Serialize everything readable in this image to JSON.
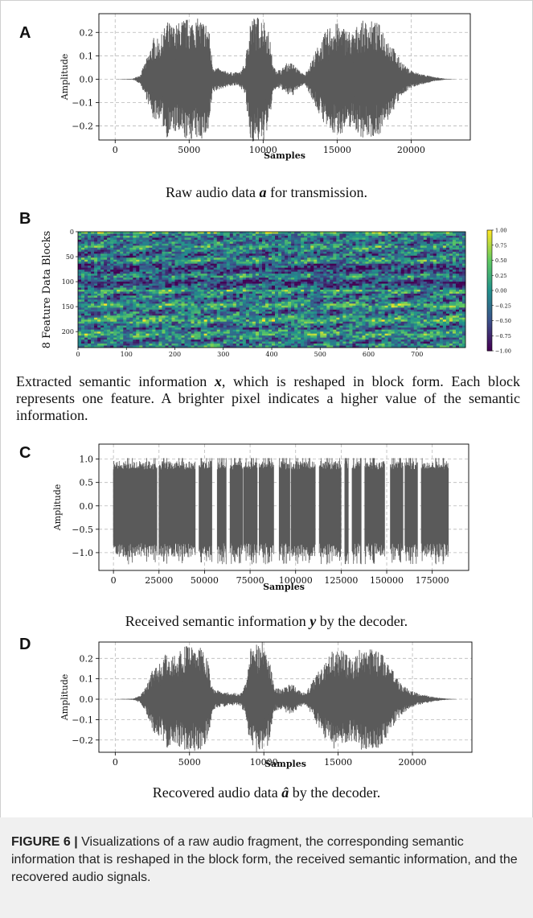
{
  "panels": {
    "a": {
      "letter": "A",
      "caption_pre": "Raw audio data ",
      "caption_sym": "a",
      "caption_post": " for transmission."
    },
    "b": {
      "letter": "B",
      "caption_pre": "Extracted semantic information ",
      "caption_sym": "x",
      "caption_post": ", which is reshaped in block form. Each block represents one feature. A brighter pixel indicates a higher value of the semantic information."
    },
    "c": {
      "letter": "C",
      "caption_pre": "Received semantic information ",
      "caption_sym": "y",
      "caption_post": " by the decoder."
    },
    "d": {
      "letter": "D",
      "caption_pre": "Recovered audio data ",
      "caption_sym": "â",
      "caption_post": " by the decoder."
    }
  },
  "figure_caption": {
    "label": "FIGURE 6 |",
    "text": " Visualizations of a raw audio fragment, the corresponding semantic information that is reshaped in the block form, the received semantic information, and the recovered audio signals."
  },
  "colors": {
    "waveform": "#5a5a5a",
    "grid": "#b8b8b8",
    "axis": "#000000"
  },
  "chart_data": [
    {
      "id": "A",
      "type": "line",
      "title": "",
      "xlabel": "Samples",
      "ylabel": "Amplitude",
      "xlim": [
        -1100,
        24000
      ],
      "ylim": [
        -0.26,
        0.28
      ],
      "xticks": [
        0,
        5000,
        10000,
        15000,
        20000
      ],
      "yticks": [
        -0.2,
        -0.1,
        0.0,
        0.1,
        0.2
      ],
      "grid": true,
      "series": [
        {
          "envelope": [
            [
              0,
              0.0
            ],
            [
              1200,
              0.002
            ],
            [
              1700,
              0.02
            ],
            [
              2200,
              0.1
            ],
            [
              2600,
              0.18
            ],
            [
              3000,
              0.17
            ],
            [
              3500,
              0.25
            ],
            [
              4000,
              0.23
            ],
            [
              4600,
              0.26
            ],
            [
              5300,
              0.26
            ],
            [
              5800,
              0.26
            ],
            [
              6300,
              0.24
            ],
            [
              6600,
              0.06
            ],
            [
              7200,
              0.04
            ],
            [
              7800,
              0.03
            ],
            [
              8400,
              0.03
            ],
            [
              8800,
              0.07
            ],
            [
              9100,
              0.27
            ],
            [
              9500,
              0.27
            ],
            [
              10000,
              0.27
            ],
            [
              10400,
              0.2
            ],
            [
              10700,
              0.05
            ],
            [
              11200,
              0.04
            ],
            [
              11600,
              0.07
            ],
            [
              12000,
              0.07
            ],
            [
              12400,
              0.04
            ],
            [
              12800,
              0.02
            ],
            [
              13200,
              0.07
            ],
            [
              13600,
              0.13
            ],
            [
              14200,
              0.2
            ],
            [
              14600,
              0.24
            ],
            [
              15100,
              0.24
            ],
            [
              15600,
              0.22
            ],
            [
              16100,
              0.2
            ],
            [
              16500,
              0.25
            ],
            [
              17000,
              0.25
            ],
            [
              17500,
              0.25
            ],
            [
              18000,
              0.23
            ],
            [
              18600,
              0.16
            ],
            [
              19200,
              0.09
            ],
            [
              19700,
              0.05
            ],
            [
              20300,
              0.03
            ],
            [
              20900,
              0.02
            ],
            [
              21500,
              0.01
            ],
            [
              22300,
              0.002
            ],
            [
              23000,
              0.0
            ]
          ]
        }
      ]
    },
    {
      "id": "B",
      "type": "heatmap",
      "title": "",
      "xlabel": "",
      "ylabel": "8 Feature Data Blocks",
      "xlim": [
        0,
        800
      ],
      "ylim": [
        0,
        232
      ],
      "xticks": [
        0,
        100,
        200,
        300,
        400,
        500,
        600,
        700
      ],
      "yticks": [
        0,
        50,
        100,
        150,
        200
      ],
      "colorbar": {
        "min": -1.0,
        "max": 1.0,
        "ticks": [
          "1.00",
          "0.75",
          "0.50",
          "0.25",
          "0.00",
          "−0.25",
          "−0.50",
          "−0.75",
          "−1.00"
        ]
      },
      "colormap": "viridis",
      "blocks": 8
    },
    {
      "id": "C",
      "type": "line",
      "title": "",
      "xlabel": "Samples",
      "ylabel": "Amplitude",
      "xlim": [
        -8000,
        195000
      ],
      "ylim": [
        -1.38,
        1.32
      ],
      "xticks": [
        0,
        25000,
        50000,
        75000,
        100000,
        125000,
        150000,
        175000
      ],
      "yticks": [
        -1.0,
        -0.5,
        0.0,
        0.5,
        1.0
      ],
      "grid": true,
      "series": [
        {
          "segments": [
            [
              0,
              24000
            ],
            [
              25000,
              45000
            ],
            [
              47000,
              54000
            ],
            [
              57000,
              62000
            ],
            [
              64000,
              71000
            ],
            [
              71500,
              79000
            ],
            [
              80000,
              88000
            ],
            [
              91000,
              97000
            ],
            [
              97500,
              111000
            ],
            [
              113000,
              125000
            ],
            [
              127000,
              129000
            ],
            [
              131000,
              136000
            ],
            [
              138000,
              149000
            ],
            [
              152000,
              159000
            ],
            [
              160000,
              167000
            ],
            [
              169000,
              184000
            ]
          ]
        }
      ]
    },
    {
      "id": "D",
      "type": "line",
      "title": "",
      "xlabel": "Samples",
      "ylabel": "Amplitude",
      "xlim": [
        -1100,
        24000
      ],
      "ylim": [
        -0.26,
        0.28
      ],
      "xticks": [
        0,
        5000,
        10000,
        15000,
        20000
      ],
      "yticks": [
        -0.2,
        -0.1,
        0.0,
        0.1,
        0.2
      ],
      "grid": true,
      "series": [
        {
          "envelope": [
            [
              0,
              0.0
            ],
            [
              1200,
              0.003
            ],
            [
              1700,
              0.02
            ],
            [
              2200,
              0.09
            ],
            [
              2600,
              0.17
            ],
            [
              3000,
              0.18
            ],
            [
              3500,
              0.24
            ],
            [
              4000,
              0.22
            ],
            [
              4600,
              0.26
            ],
            [
              5300,
              0.26
            ],
            [
              5800,
              0.25
            ],
            [
              6200,
              0.2
            ],
            [
              6600,
              0.05
            ],
            [
              7200,
              0.04
            ],
            [
              7800,
              0.03
            ],
            [
              8400,
              0.03
            ],
            [
              8800,
              0.08
            ],
            [
              9100,
              0.27
            ],
            [
              9500,
              0.28
            ],
            [
              10000,
              0.28
            ],
            [
              10400,
              0.2
            ],
            [
              10700,
              0.06
            ],
            [
              11200,
              0.05
            ],
            [
              11600,
              0.07
            ],
            [
              12000,
              0.07
            ],
            [
              12400,
              0.04
            ],
            [
              12800,
              0.03
            ],
            [
              13200,
              0.08
            ],
            [
              13600,
              0.13
            ],
            [
              14200,
              0.21
            ],
            [
              14600,
              0.24
            ],
            [
              15100,
              0.25
            ],
            [
              15600,
              0.22
            ],
            [
              16100,
              0.2
            ],
            [
              16500,
              0.25
            ],
            [
              17000,
              0.25
            ],
            [
              17500,
              0.25
            ],
            [
              18000,
              0.22
            ],
            [
              18600,
              0.15
            ],
            [
              19200,
              0.08
            ],
            [
              19700,
              0.05
            ],
            [
              20300,
              0.03
            ],
            [
              20900,
              0.02
            ],
            [
              21500,
              0.01
            ],
            [
              22300,
              0.003
            ],
            [
              23000,
              0.0
            ]
          ]
        }
      ]
    }
  ]
}
